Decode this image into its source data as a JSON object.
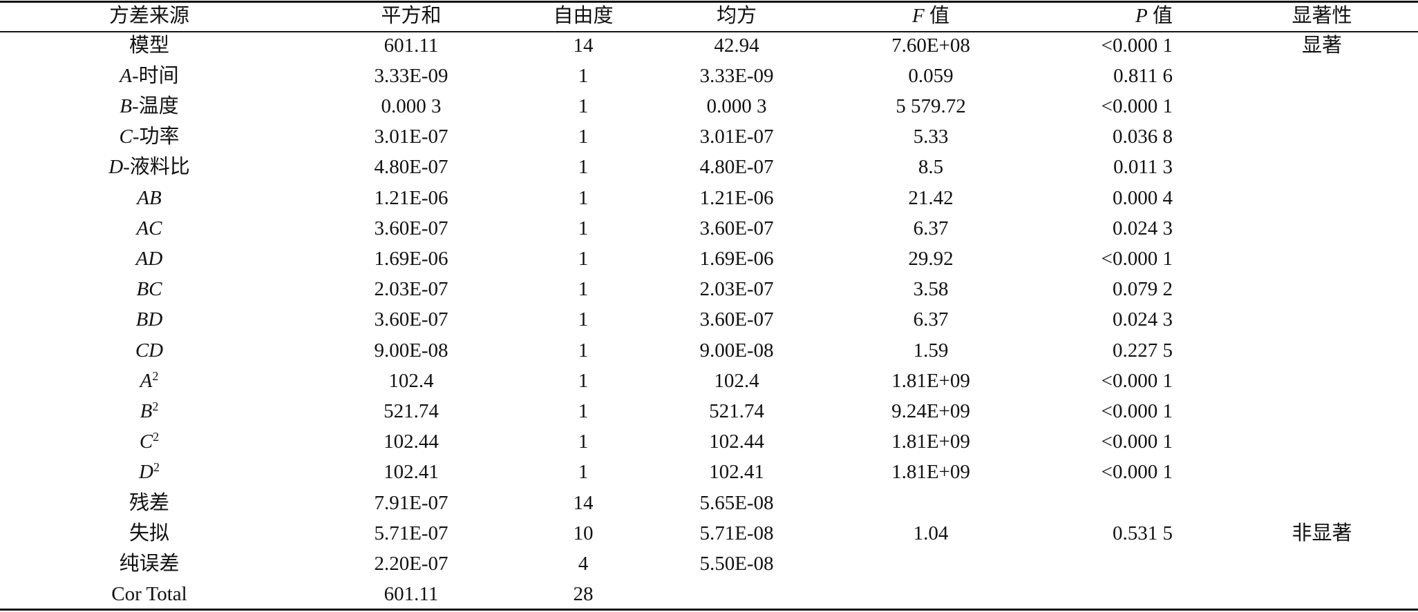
{
  "table": {
    "header": [
      "方差来源",
      "平方和",
      "自由度",
      "均方",
      {
        "symbol": "F",
        "text": " 值"
      },
      {
        "symbol": "P",
        "text": " 值"
      },
      "显著性"
    ],
    "rows": [
      [
        "模型",
        "601.11",
        "14",
        "42.94",
        "7.60E+08",
        "<0.000 1",
        "显著"
      ],
      [
        {
          "symbol": "A",
          "text": "-时间"
        },
        "3.33E-09",
        "1",
        "3.33E-09",
        "0.059",
        "0.811 6",
        null
      ],
      [
        {
          "symbol": "B",
          "text": "-温度"
        },
        "0.000 3",
        "1",
        "0.000 3",
        "5 579.72",
        "<0.000 1",
        null
      ],
      [
        {
          "symbol": "C",
          "text": "-功率"
        },
        "3.01E-07",
        "1",
        "3.01E-07",
        "5.33",
        "0.036 8",
        null
      ],
      [
        {
          "symbol": "D",
          "text": "-液料比"
        },
        "4.80E-07",
        "1",
        "4.80E-07",
        "8.5",
        "0.011 3",
        null
      ],
      [
        {
          "symbol": "AB"
        },
        "1.21E-06",
        "1",
        "1.21E-06",
        "21.42",
        "0.000 4",
        null
      ],
      [
        {
          "symbol": "AC"
        },
        "3.60E-07",
        "1",
        "3.60E-07",
        "6.37",
        "0.024 3",
        null
      ],
      [
        {
          "symbol": "AD"
        },
        "1.69E-06",
        "1",
        "1.69E-06",
        "29.92",
        "<0.000 1",
        null
      ],
      [
        {
          "symbol": "BC"
        },
        "2.03E-07",
        "1",
        "2.03E-07",
        "3.58",
        "0.079 2",
        null
      ],
      [
        {
          "symbol": "BD"
        },
        "3.60E-07",
        "1",
        "3.60E-07",
        "6.37",
        "0.024 3",
        null
      ],
      [
        {
          "symbol": "CD"
        },
        "9.00E-08",
        "1",
        "9.00E-08",
        "1.59",
        "0.227 5",
        null
      ],
      [
        {
          "symbol": "A",
          "sup": "2"
        },
        "102.4",
        "1",
        "102.4",
        "1.81E+09",
        "<0.000 1",
        null
      ],
      [
        {
          "symbol": "B",
          "sup": "2"
        },
        "521.74",
        "1",
        "521.74",
        "9.24E+09",
        "<0.000 1",
        null
      ],
      [
        {
          "symbol": "C",
          "sup": "2"
        },
        "102.44",
        "1",
        "102.44",
        "1.81E+09",
        "<0.000 1",
        null
      ],
      [
        {
          "symbol": "D",
          "sup": "2"
        },
        "102.41",
        "1",
        "102.41",
        "1.81E+09",
        "<0.000 1",
        null
      ],
      [
        "残差",
        "7.91E-07",
        "14",
        "5.65E-08",
        null,
        null,
        null
      ],
      [
        "失拟",
        "5.71E-07",
        "10",
        "5.71E-08",
        "1.04",
        "0.531 5",
        "非显著"
      ],
      [
        "纯误差",
        "2.20E-07",
        "4",
        "5.50E-08",
        null,
        null,
        null
      ],
      [
        "Cor Total",
        "601.11",
        "28",
        null,
        null,
        null,
        null
      ]
    ]
  }
}
